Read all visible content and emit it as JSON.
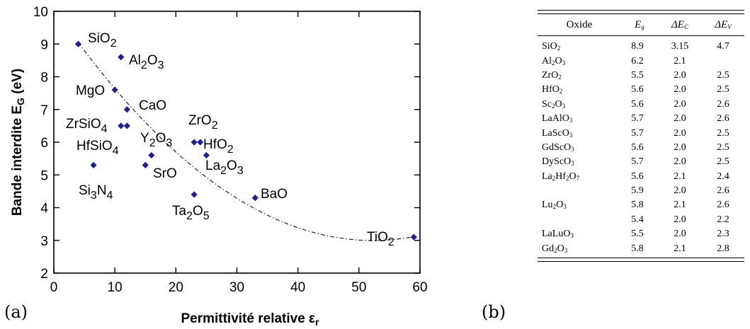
{
  "chart_data": {
    "type": "scatter",
    "xlabel": "Permittivité relative εr",
    "ylabel": "Bande interdite EG (eV)",
    "xlim": [
      0,
      60
    ],
    "ylim": [
      2,
      10
    ],
    "xticks": [
      "0",
      "10",
      "20",
      "30",
      "40",
      "50",
      "60"
    ],
    "yticks": [
      "2",
      "3",
      "4",
      "5",
      "6",
      "7",
      "8",
      "9",
      "10"
    ],
    "marker_color": "#1f1f8f",
    "trend_line": "dash-dot",
    "points": [
      {
        "label": "SiO2",
        "label_html": "SiO<sub>2</sub>",
        "x": 4,
        "y": 9.0
      },
      {
        "label": "Al2O3",
        "label_html": "Al<sub>2</sub>O<sub>3</sub>",
        "x": 11,
        "y": 8.6
      },
      {
        "label": "MgO",
        "label_html": "MgO",
        "x": 10,
        "y": 7.6
      },
      {
        "label": "CaO",
        "label_html": "CaO",
        "x": 12,
        "y": 7.0
      },
      {
        "label": "ZrSiO4",
        "label_html": "ZrSiO<sub>4</sub>",
        "x": 11,
        "y": 6.5
      },
      {
        "label": "",
        "label_html": "",
        "x": 12,
        "y": 6.5
      },
      {
        "label": "HfSiO4",
        "label_html": "HfSiO<sub>4</sub>",
        "x": 6.5,
        "y": 5.3
      },
      {
        "label": "Y2O3",
        "label_html": "Y<sub>2</sub>O<sub>3</sub>",
        "x": 16,
        "y": 5.6
      },
      {
        "label": "SrO",
        "label_html": "SrO",
        "x": 15,
        "y": 5.3
      },
      {
        "label": "ZrO2",
        "label_html": "ZrO<sub>2</sub>",
        "x": 23,
        "y": 6.0
      },
      {
        "label": "HfO2",
        "label_html": "HfO<sub>2</sub>",
        "x": 24,
        "y": 6.0
      },
      {
        "label": "La2O3",
        "label_html": "La<sub>2</sub>O<sub>3</sub>",
        "x": 25,
        "y": 5.6
      },
      {
        "label": "Ta2O5",
        "label_html": "Ta<sub>2</sub>O<sub>5</sub>",
        "x": 23,
        "y": 4.4
      },
      {
        "label": "BaO",
        "label_html": "BaO",
        "x": 33,
        "y": 4.3
      },
      {
        "label": "TiO2",
        "label_html": "TiO<sub>2</sub>",
        "x": 59,
        "y": 3.1
      }
    ],
    "extra_labels": [
      {
        "label": "Si3N4",
        "label_html": "Si<sub>3</sub>N<sub>4</sub>"
      }
    ]
  },
  "panel_labels": {
    "a": "(a)",
    "b": "(b)"
  },
  "table": {
    "headers": [
      "Oxide",
      "E<sub>g</sub>",
      "ΔE<sub>C</sub>",
      "ΔE<sub>V</sub>"
    ],
    "rows": [
      [
        "SiO<sub>2</sub>",
        "8.9",
        "3.15",
        "4.7"
      ],
      [
        "Al<sub>2</sub>O<sub>3</sub>",
        "6.2",
        "2.1",
        ""
      ],
      [
        "ZrO<sub>2</sub>",
        "5.5",
        "2.0",
        "2.5"
      ],
      [
        "HfO<sub>2</sub>",
        "5.6",
        "2.0",
        "2.5"
      ],
      [
        "Sc<sub>2</sub>O<sub>3</sub>",
        "5.6",
        "2.0",
        "2.6"
      ],
      [
        "LaAlO<sub>3</sub>",
        "5.7",
        "2.0",
        "2.6"
      ],
      [
        "LaScO<sub>3</sub>",
        "5.7",
        "2.0",
        "2.5"
      ],
      [
        "GdScO<sub>3</sub>",
        "5.6",
        "2.0",
        "2.5"
      ],
      [
        "DyScO<sub>3</sub>",
        "5.7",
        "2.0",
        "2.5"
      ],
      [
        "La<sub>2</sub>Hf<sub>2</sub>O<sub>7</sub>",
        "5.6",
        "2.1",
        "2.4"
      ],
      [
        "",
        "5.9",
        "2.0",
        "2.6"
      ],
      [
        "Lu<sub>2</sub>O<sub>3</sub>",
        "5.8",
        "2.1",
        "2.6"
      ],
      [
        "",
        "5.4",
        "2.0",
        "2.2"
      ],
      [
        "LaLuO<sub>3</sub>",
        "5.5",
        "2.0",
        "2.3"
      ],
      [
        "Gd<sub>2</sub>O<sub>3</sub>",
        "5.8",
        "2.1",
        "2.8"
      ]
    ]
  }
}
